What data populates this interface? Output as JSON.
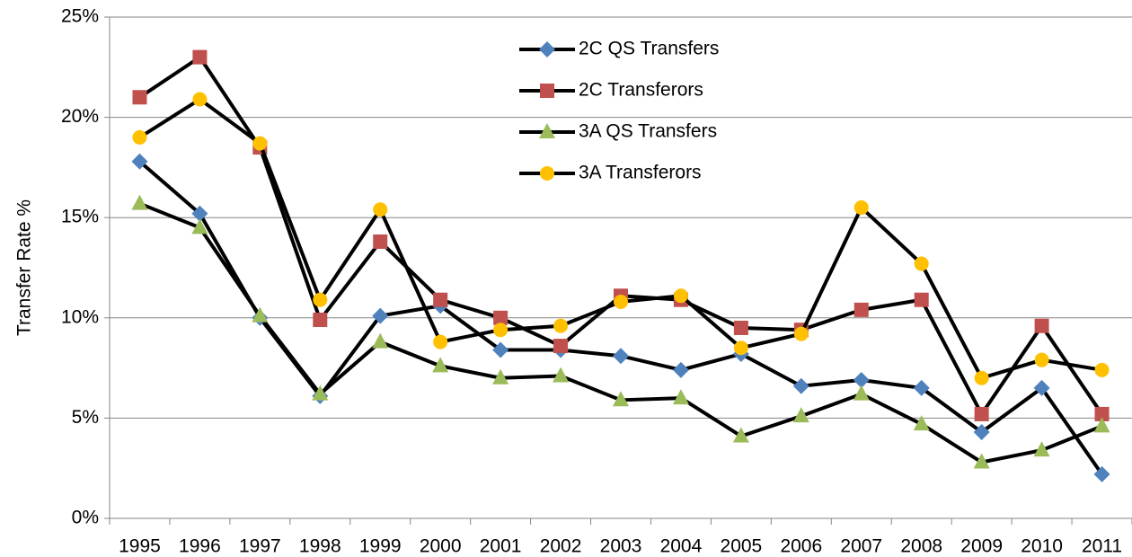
{
  "chart_data": {
    "type": "line",
    "ylabel": "Transfer  Rate %",
    "categories": [
      "1995",
      "1996",
      "1997",
      "1998",
      "1999",
      "2000",
      "2001",
      "2002",
      "2003",
      "2004",
      "2005",
      "2006",
      "2007",
      "2008",
      "2009",
      "2010",
      "2011"
    ],
    "series": [
      {
        "name": "2C QS Transfers",
        "color": "#4f81bd",
        "marker": "diamond",
        "values": [
          17.8,
          15.2,
          10.0,
          6.1,
          10.1,
          10.6,
          8.4,
          8.4,
          8.1,
          7.4,
          8.2,
          6.6,
          6.9,
          6.5,
          4.3,
          6.5,
          2.2
        ]
      },
      {
        "name": "2C Transferors",
        "color": "#c0504d",
        "marker": "square",
        "values": [
          21.0,
          23.0,
          18.5,
          9.9,
          13.8,
          10.9,
          10.0,
          8.6,
          11.1,
          10.9,
          9.5,
          9.4,
          10.4,
          10.9,
          5.2,
          9.6,
          5.2
        ]
      },
      {
        "name": "3A QS Transfers",
        "color": "#9bbb59",
        "marker": "triangle",
        "values": [
          15.7,
          14.5,
          10.1,
          6.2,
          8.8,
          7.6,
          7.0,
          7.1,
          5.9,
          6.0,
          4.1,
          5.1,
          6.2,
          4.7,
          2.8,
          3.4,
          4.6
        ]
      },
      {
        "name": "3A Transferors",
        "color": "#ffc000",
        "marker": "circle",
        "values": [
          19.0,
          20.9,
          18.7,
          10.9,
          15.4,
          8.8,
          9.4,
          9.6,
          10.8,
          11.1,
          8.5,
          9.2,
          15.5,
          12.7,
          7.0,
          7.9,
          7.4
        ]
      }
    ],
    "ylim": [
      0,
      25
    ],
    "yticks": [
      {
        "value": 0,
        "label": "0%"
      },
      {
        "value": 5,
        "label": "5%"
      },
      {
        "value": 10,
        "label": "10%"
      },
      {
        "value": 15,
        "label": "15%"
      },
      {
        "value": 20,
        "label": "20%"
      },
      {
        "value": 25,
        "label": "25%"
      }
    ],
    "grid": true,
    "line_color": "#000000",
    "legend": "top"
  }
}
